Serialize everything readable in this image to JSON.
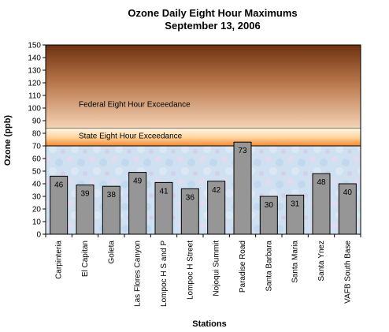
{
  "chart_data": {
    "type": "bar",
    "title": "Ozone Daily Eight Hour Maximums",
    "subtitle": "September 13, 2006",
    "xlabel": "Stations",
    "ylabel": "Ozone (ppb)",
    "ylim": [
      0,
      150
    ],
    "yticks": [
      0,
      10,
      20,
      30,
      40,
      50,
      60,
      70,
      80,
      90,
      100,
      110,
      120,
      130,
      140,
      150
    ],
    "categories": [
      "Carpinteria",
      "El Capitan",
      "Goleta",
      "Las Flores Canyon",
      "Lompoc H S and P",
      "Lompoc H Street",
      "Nojoqui Summit",
      "Paradise Road",
      "Santa Barbara",
      "Santa Maria",
      "Santa Ynez",
      "VAFB South Base"
    ],
    "values": [
      46,
      39,
      38,
      49,
      41,
      36,
      42,
      73,
      30,
      31,
      48,
      40
    ],
    "bands": [
      {
        "label": "Federal Eight Hour Exceedance",
        "from": 84,
        "to": 150,
        "color_top": "#7a3a12",
        "color_bottom": "#f2c9a8"
      },
      {
        "label": "State Eight Hour Exceedance",
        "from": 70,
        "to": 84,
        "color_top": "#fde7c8",
        "color_bottom": "#f99a3c"
      }
    ],
    "bar_color": "#969696",
    "plot_background": "#cfe0ee"
  }
}
